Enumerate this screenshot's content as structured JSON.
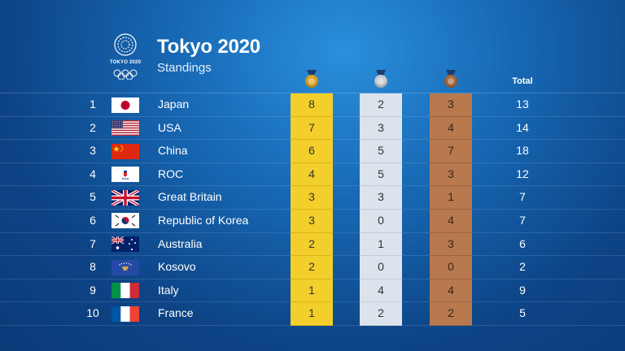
{
  "header": {
    "logo_text": "TOKYO 2020",
    "title": "Tokyo 2020",
    "subtitle": "Standings",
    "total_label": "Total"
  },
  "colors": {
    "gold": "#f2cf2b",
    "silver": "#dce3ec",
    "bronze": "#b8794f",
    "background": "#1768b4"
  },
  "medal_icons": [
    "gold-medal-icon",
    "silver-medal-icon",
    "bronze-medal-icon"
  ],
  "rows": [
    {
      "rank": "1",
      "flag": "japan-flag-icon",
      "country": "Japan",
      "gold": "8",
      "silver": "2",
      "bronze": "3",
      "total": "13"
    },
    {
      "rank": "2",
      "flag": "usa-flag-icon",
      "country": "USA",
      "gold": "7",
      "silver": "3",
      "bronze": "4",
      "total": "14"
    },
    {
      "rank": "3",
      "flag": "china-flag-icon",
      "country": "China",
      "gold": "6",
      "silver": "5",
      "bronze": "7",
      "total": "18"
    },
    {
      "rank": "4",
      "flag": "roc-flag-icon",
      "country": "ROC",
      "gold": "4",
      "silver": "5",
      "bronze": "3",
      "total": "12"
    },
    {
      "rank": "5",
      "flag": "great-britain-flag-icon",
      "country": "Great Britain",
      "gold": "3",
      "silver": "3",
      "bronze": "1",
      "total": "7"
    },
    {
      "rank": "6",
      "flag": "korea-flag-icon",
      "country": "Republic of Korea",
      "gold": "3",
      "silver": "0",
      "bronze": "4",
      "total": "7"
    },
    {
      "rank": "7",
      "flag": "australia-flag-icon",
      "country": "Australia",
      "gold": "2",
      "silver": "1",
      "bronze": "3",
      "total": "6"
    },
    {
      "rank": "8",
      "flag": "kosovo-flag-icon",
      "country": "Kosovo",
      "gold": "2",
      "silver": "0",
      "bronze": "0",
      "total": "2"
    },
    {
      "rank": "9",
      "flag": "italy-flag-icon",
      "country": "Italy",
      "gold": "1",
      "silver": "4",
      "bronze": "4",
      "total": "9"
    },
    {
      "rank": "10",
      "flag": "france-flag-icon",
      "country": "France",
      "gold": "1",
      "silver": "2",
      "bronze": "2",
      "total": "5"
    }
  ]
}
